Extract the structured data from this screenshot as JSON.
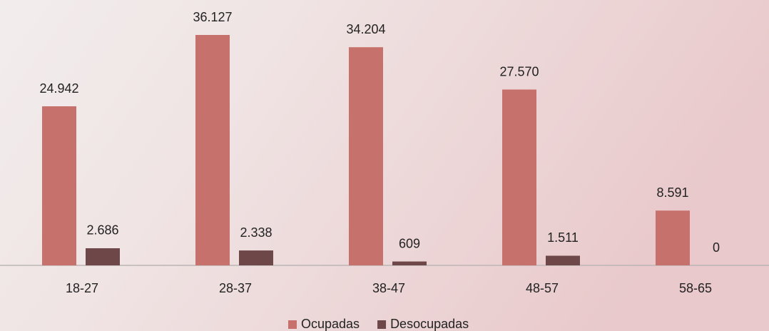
{
  "chart_data": {
    "type": "bar",
    "categories": [
      "18-27",
      "28-37",
      "38-47",
      "48-57",
      "58-65"
    ],
    "series": [
      {
        "name": "Ocupadas",
        "color": "#c7716d",
        "values": [
          24942,
          36127,
          34204,
          27570,
          8591
        ],
        "value_labels": [
          "24.942",
          "36.127",
          "34.204",
          "27.570",
          "8.591"
        ]
      },
      {
        "name": "Desocupadas",
        "color": "#6e4749",
        "values": [
          2686,
          2338,
          609,
          1511,
          0
        ],
        "value_labels": [
          "2.686",
          "2.338",
          "609",
          "1.511",
          "0"
        ]
      }
    ],
    "legend": "bottom"
  }
}
